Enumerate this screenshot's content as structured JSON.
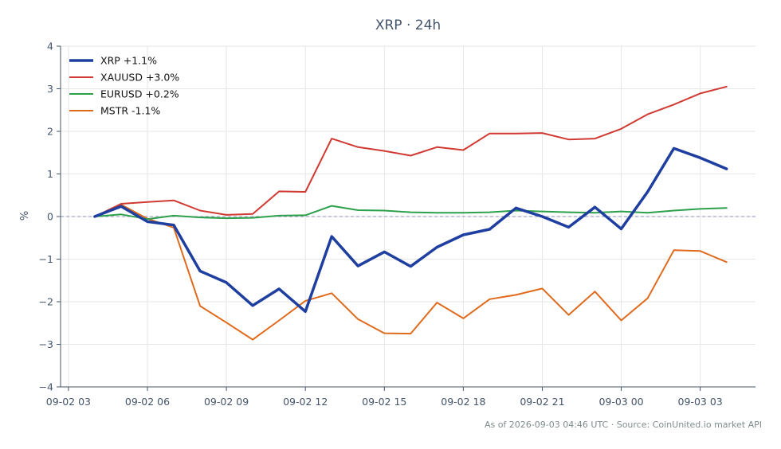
{
  "chart_data": {
    "type": "line",
    "title": "XRP · 24h",
    "xlabel": "",
    "ylabel": "%",
    "ylim": [
      -4,
      4
    ],
    "yticks": [
      -4,
      -3,
      -2,
      -1,
      0,
      1,
      2,
      3,
      4
    ],
    "ytick_labels": [
      "−4",
      "−3",
      "−2",
      "−1",
      "0",
      "1",
      "2",
      "3",
      "4"
    ],
    "xlim": [
      -0.3,
      26.1
    ],
    "xticks": [
      0,
      3,
      6,
      9,
      12,
      15,
      18,
      21,
      24
    ],
    "xtick_labels": [
      "09-02 03",
      "09-02 06",
      "09-02 09",
      "09-02 12",
      "09-02 15",
      "09-02 18",
      "09-02 21",
      "09-03 00",
      "09-03 03"
    ],
    "x_hours": [
      1,
      2,
      3,
      4,
      5,
      6,
      7,
      8,
      9,
      10,
      11,
      12,
      13,
      14,
      15,
      16,
      17,
      18,
      19,
      20,
      21,
      22,
      23,
      24,
      25
    ],
    "grid": true,
    "legend_position": "top-left",
    "series": [
      {
        "name": "XRP +1.1%",
        "color": "#1f3fa0",
        "values": [
          0.0,
          0.24,
          -0.12,
          -0.2,
          -1.28,
          -1.55,
          -2.09,
          -1.7,
          -2.23,
          -0.47,
          -1.16,
          -0.83,
          -1.17,
          -0.72,
          -0.43,
          -0.3,
          0.2,
          0.0,
          -0.25,
          0.22,
          -0.29,
          0.58,
          1.6,
          1.38,
          1.12
        ]
      },
      {
        "name": "XAUUSD +3.0%",
        "color": "#d03a32",
        "values": [
          0.0,
          0.3,
          0.34,
          0.38,
          0.14,
          0.04,
          0.06,
          0.59,
          0.58,
          1.83,
          1.63,
          1.54,
          1.43,
          1.63,
          1.56,
          1.95,
          1.95,
          1.96,
          1.81,
          1.83,
          2.06,
          2.4,
          2.63,
          2.89,
          3.05
        ]
      },
      {
        "name": "EURUSD +0.2%",
        "color": "#2ca04a",
        "values": [
          0.0,
          0.05,
          -0.06,
          0.02,
          -0.02,
          -0.04,
          -0.03,
          0.02,
          0.03,
          0.25,
          0.15,
          0.14,
          0.1,
          0.09,
          0.09,
          0.1,
          0.14,
          0.12,
          0.1,
          0.09,
          0.12,
          0.09,
          0.14,
          0.18,
          0.2
        ]
      },
      {
        "name": "MSTR -1.1%",
        "color": "#e06a1c",
        "values": [
          0.0,
          0.28,
          -0.05,
          -0.26,
          -2.1,
          -2.49,
          -2.89,
          -2.44,
          -1.98,
          -1.8,
          -2.41,
          -2.74,
          -2.75,
          -2.02,
          -2.39,
          -1.94,
          -1.84,
          -1.69,
          -2.31,
          -1.76,
          -2.44,
          -1.92,
          -0.79,
          -0.81,
          -1.07
        ]
      }
    ]
  },
  "footer": "As of 2026-09-03 04:46 UTC · Source: CoinUnited.io market API"
}
